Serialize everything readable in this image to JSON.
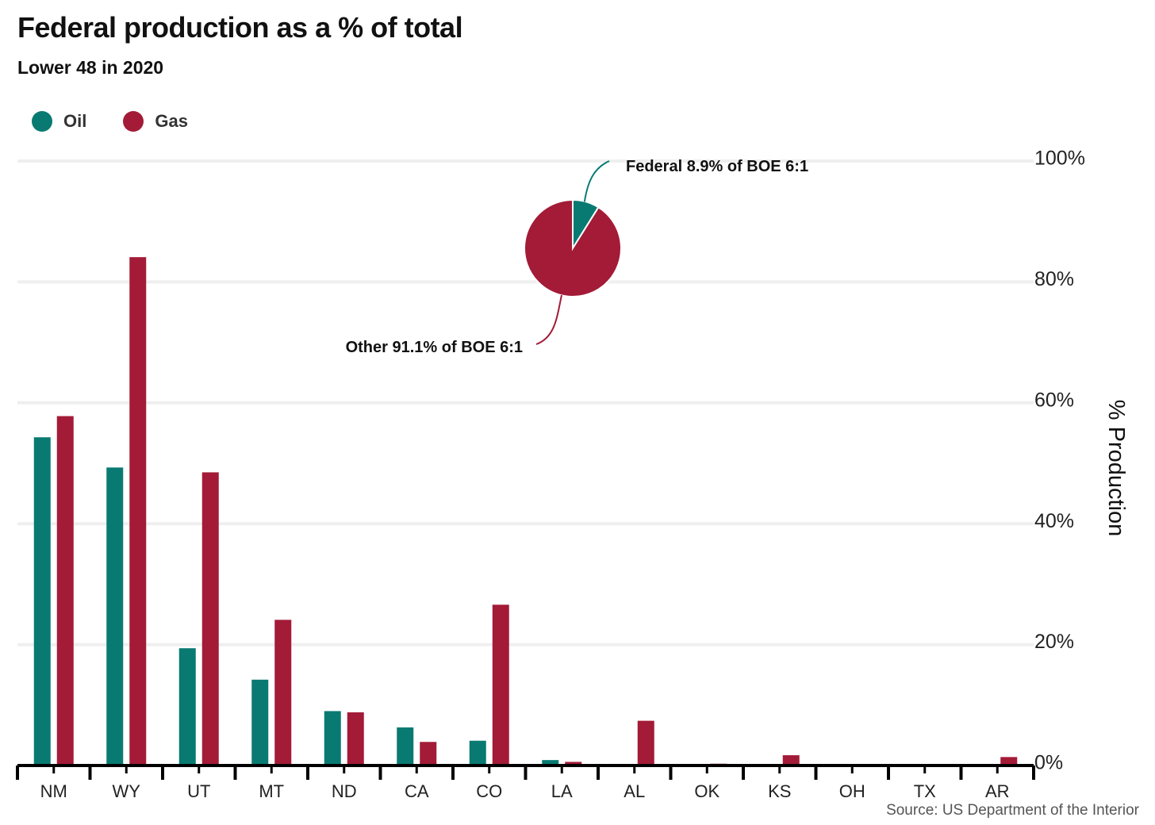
{
  "title": "Federal production as a % of total",
  "subtitle": "Lower 48 in 2020",
  "source": "Source: US Department of the Interior",
  "colors": {
    "oil": "#087a72",
    "gas": "#a31b37",
    "grid": "#efefef",
    "axis": "#000000"
  },
  "legend": [
    {
      "name": "Oil",
      "color": "#087a72"
    },
    {
      "name": "Gas",
      "color": "#a31b37"
    }
  ],
  "chart_data": [
    {
      "type": "bar",
      "categories": [
        "NM",
        "WY",
        "UT",
        "MT",
        "ND",
        "CA",
        "CO",
        "LA",
        "AL",
        "OK",
        "KS",
        "OH",
        "TX",
        "AR"
      ],
      "series": [
        {
          "name": "Oil",
          "values": [
            54.3,
            49.3,
            19.4,
            14.2,
            9.0,
            6.3,
            4.1,
            0.9,
            0.0,
            0.0,
            0.0,
            0.0,
            0.0,
            0.0
          ]
        },
        {
          "name": "Gas",
          "values": [
            57.8,
            84.1,
            48.5,
            24.1,
            8.8,
            3.9,
            26.6,
            0.6,
            7.4,
            0.3,
            1.7,
            0.0,
            0.0,
            1.4
          ]
        }
      ],
      "ylabel": "% Production",
      "ylim": [
        0,
        100
      ],
      "yticks": [
        0,
        20,
        40,
        60,
        80,
        100
      ],
      "ytick_labels": [
        "0%",
        "20%",
        "40%",
        "60%",
        "80%",
        "100%"
      ],
      "grid": true,
      "legend_position": "top-left"
    },
    {
      "type": "pie",
      "slices": [
        {
          "name": "Federal",
          "value": 8.9,
          "label": "Federal 8.9% of BOE 6:1",
          "color": "#087a72"
        },
        {
          "name": "Other",
          "value": 91.1,
          "label": "Other 91.1% of BOE 6:1",
          "color": "#a31b37"
        }
      ]
    }
  ]
}
